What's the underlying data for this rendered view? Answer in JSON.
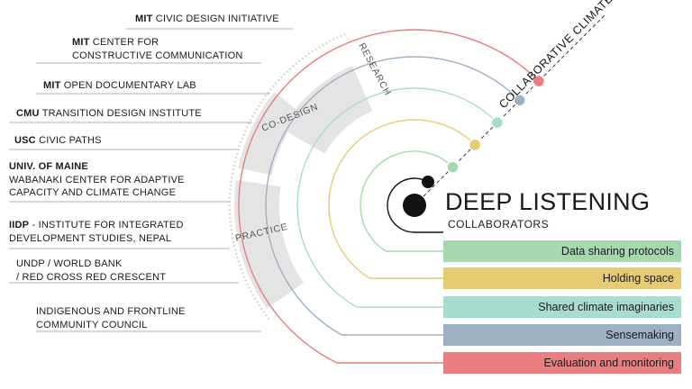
{
  "title": "DEEP LISTENING",
  "subtitle": "COLLABORATORS",
  "axis_label": "COLLABORATIVE CLIMATE ADAPTATION",
  "bands": [
    "RESEARCH",
    "CO-DESIGN",
    "PRACTICE"
  ],
  "collaborators": [
    {
      "bold": "MIT",
      "rest": " CIVIC DESIGN INITIATIVE"
    },
    {
      "bold": "MIT",
      "rest": " CENTER FOR",
      "line2": "CONSTRUCTIVE COMMUNICATION"
    },
    {
      "bold": "MIT",
      "rest": " OPEN DOCUMENTARY LAB"
    },
    {
      "bold": "CMU",
      "rest": " TRANSITION DESIGN INSTITUTE"
    },
    {
      "bold": "USC",
      "rest": " CIVIC PATHS"
    },
    {
      "bold": "UNIV. OF MAINE",
      "rest": "",
      "line2": "WABANAKI CENTER FOR ADAPTIVE",
      "line3": "CAPACITY AND CLIMATE CHANGE"
    },
    {
      "bold": "IIDP",
      "rest": " - INSTITUTE FOR INTEGRATED",
      "line2": "DEVELOPMENT STUDIES, NEPAL"
    },
    {
      "bold": "",
      "rest": "UNDP / WORLD BANK",
      "line2": "/ RED CROSS RED CRESCENT"
    },
    {
      "bold": "",
      "rest": "INDIGENOUS AND FRONTLINE",
      "line2": "COMMUNITY COUNCIL"
    }
  ],
  "practices": [
    {
      "label": "Data sharing protocols",
      "color": "#a6d8ae"
    },
    {
      "label": "Holding space",
      "color": "#e6cb72"
    },
    {
      "label": "Shared climate imaginaries",
      "color": "#a8dccf"
    },
    {
      "label": "Sensemaking",
      "color": "#9db0c4"
    },
    {
      "label": "Evaluation and monitoring",
      "color": "#ea7d80"
    }
  ],
  "colors": {
    "band": "#e4e4e4",
    "leader": "#9a9a9a",
    "dot_outline": "#ffffff"
  }
}
